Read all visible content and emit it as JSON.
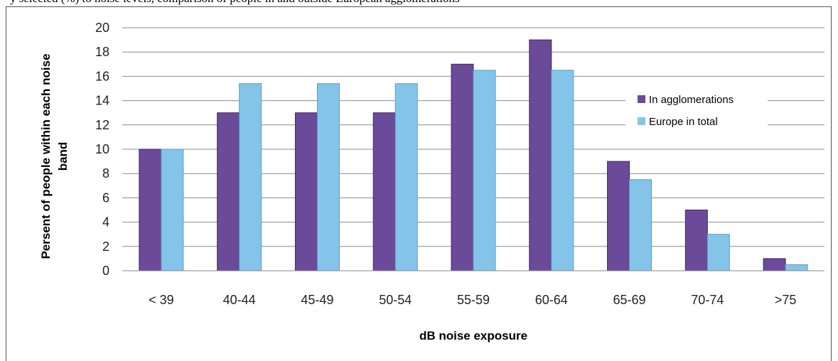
{
  "caption": "y selected (%) to noise levels, comparison of people in and outside European agglomerations",
  "chart_data": {
    "type": "bar",
    "categories": [
      "< 39",
      "40-44",
      "45-49",
      "50-54",
      "55-59",
      "60-64",
      "65-69",
      "70-74",
      ">75"
    ],
    "series": [
      {
        "name": "In agglomerations",
        "color": "#6B4A9A",
        "values": [
          10,
          13,
          13,
          13,
          17,
          19,
          9,
          5,
          1
        ]
      },
      {
        "name": "Europe in total",
        "color": "#85C4E9",
        "values": [
          10,
          15.4,
          15.4,
          15.4,
          16.5,
          16.5,
          7.5,
          3,
          0.5
        ]
      }
    ],
    "xlabel": "dB noise exposure",
    "ylabel": "Persent of people within each noise band",
    "ylim": [
      0,
      20
    ],
    "yticks": [
      "0",
      "2",
      "4",
      "6",
      "8",
      "10",
      "12",
      "14",
      "16",
      "18",
      "20"
    ],
    "grid": true,
    "legend_position": "right"
  }
}
